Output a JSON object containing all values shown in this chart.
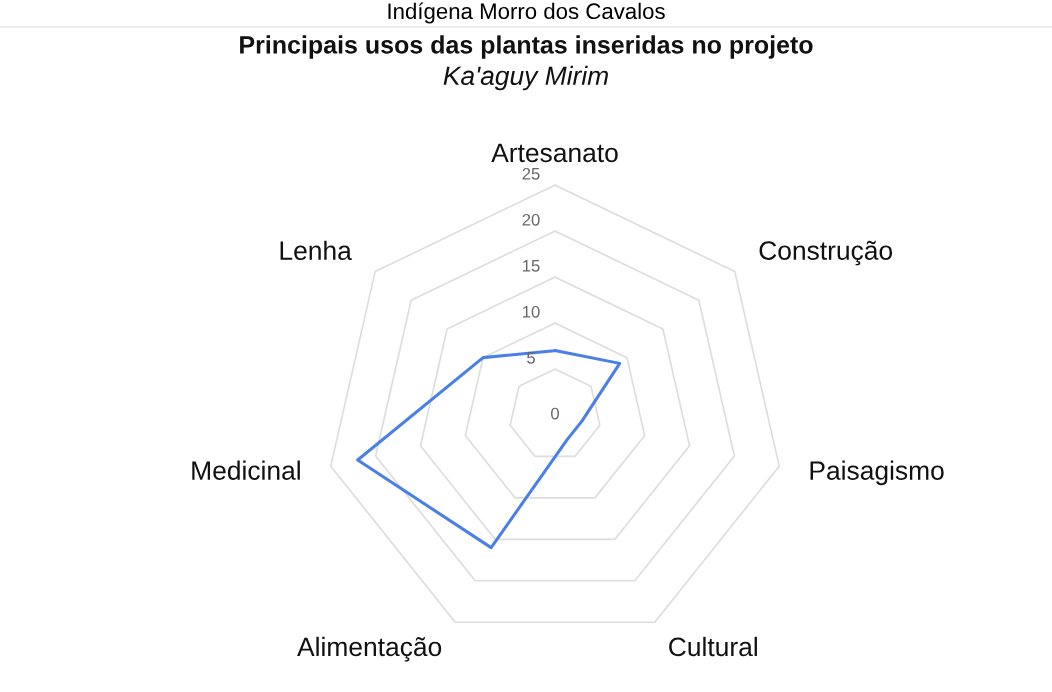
{
  "chart_data": {
    "type": "radar",
    "title": "Principais usos das plantas inseridas no projeto",
    "subtitle": "Ka'aguy Mirim",
    "annotations": [
      "Indígena Morro dos Cavalos"
    ],
    "categories": [
      "Artesanato",
      "Construção",
      "Paisagismo",
      "Cultural",
      "Alimentação",
      "Medicinal",
      "Lenha"
    ],
    "series": [
      {
        "color": "#4a7fe8",
        "values": [
          7,
          9,
          3,
          3,
          16,
          22,
          10
        ]
      }
    ],
    "ylim": [
      0,
      25
    ],
    "yticks": [
      0,
      5,
      10,
      15,
      20,
      25
    ],
    "grid": true,
    "marker": "none",
    "line_style": "solid"
  }
}
